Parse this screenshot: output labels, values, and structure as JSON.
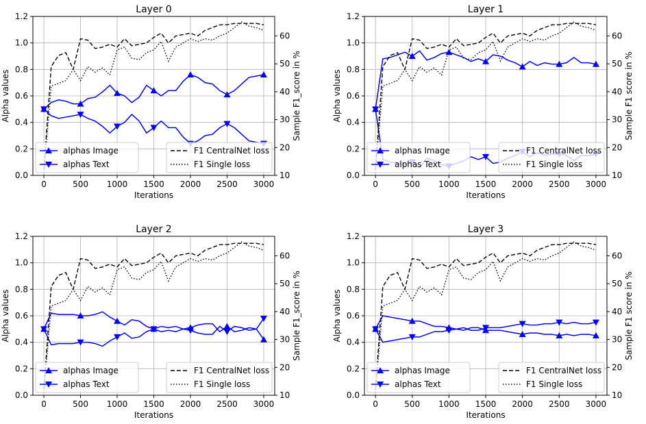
{
  "figure": {
    "colors": {
      "image": "#0000ff",
      "text": "#0000ff",
      "central": "#000000",
      "single": "#000000",
      "grid": "#b0b0b0"
    }
  },
  "chart_data": [
    {
      "type": "line",
      "title": "Layer 0",
      "xlabel": "Iterations",
      "ylabel": "Alpha values",
      "y2label": "Sample F1_score in %",
      "xlim": [
        -150,
        3150
      ],
      "ylim": [
        0,
        1.2
      ],
      "y2lim": [
        10,
        67
      ],
      "xticks": [
        0,
        500,
        1000,
        1500,
        2000,
        2500,
        3000
      ],
      "yticks": [
        0.0,
        0.2,
        0.4,
        0.6,
        0.8,
        1.0,
        1.2
      ],
      "y2ticks": [
        10,
        20,
        30,
        40,
        50,
        60
      ],
      "grid": true,
      "legend_left": [
        "alphas Image",
        "alphas Text"
      ],
      "legend_right": [
        "F1 CentralNet loss",
        "F1 Single loss"
      ],
      "x": [
        0,
        100,
        200,
        300,
        400,
        500,
        600,
        700,
        800,
        900,
        1000,
        1100,
        1200,
        1300,
        1400,
        1500,
        1600,
        1700,
        1800,
        1900,
        2000,
        2100,
        2200,
        2300,
        2400,
        2500,
        2600,
        2700,
        2800,
        2900,
        3000
      ],
      "series": [
        {
          "name": "alphas Image",
          "axis": "left",
          "marker": "triangle-up",
          "marker_every": 5,
          "values": [
            0.5,
            0.55,
            0.57,
            0.56,
            0.54,
            0.54,
            0.58,
            0.59,
            0.63,
            0.68,
            0.62,
            0.6,
            0.55,
            0.59,
            0.68,
            0.64,
            0.6,
            0.64,
            0.64,
            0.71,
            0.76,
            0.74,
            0.7,
            0.69,
            0.64,
            0.61,
            0.64,
            0.69,
            0.74,
            0.75,
            0.76
          ]
        },
        {
          "name": "alphas Text",
          "axis": "left",
          "marker": "triangle-down",
          "marker_every": 5,
          "values": [
            0.5,
            0.45,
            0.43,
            0.44,
            0.45,
            0.46,
            0.43,
            0.41,
            0.37,
            0.32,
            0.37,
            0.4,
            0.46,
            0.41,
            0.32,
            0.36,
            0.41,
            0.36,
            0.36,
            0.29,
            0.24,
            0.26,
            0.3,
            0.31,
            0.36,
            0.39,
            0.36,
            0.31,
            0.26,
            0.25,
            0.24
          ]
        },
        {
          "name": "F1 CentralNet loss",
          "axis": "right",
          "dash": "dashed",
          "values": [
            12,
            49,
            53,
            54,
            48,
            59,
            58.5,
            55.5,
            56,
            57,
            56,
            59,
            56.5,
            57,
            57.5,
            59.5,
            61,
            57.5,
            60,
            60.5,
            61,
            60,
            62,
            63,
            64,
            64,
            64.5,
            64.5,
            64.5,
            64.5,
            64
          ]
        },
        {
          "name": "F1 Single loss",
          "axis": "right",
          "dash": "dotted",
          "values": [
            11,
            42,
            43,
            44,
            48,
            44,
            49,
            47,
            48.5,
            46,
            55,
            56,
            52,
            51.5,
            54,
            55,
            58,
            51,
            56,
            57.5,
            59,
            58,
            59,
            58.5,
            60,
            61,
            63,
            65,
            63.5,
            63,
            62
          ]
        }
      ]
    },
    {
      "type": "line",
      "title": "Layer 1",
      "xlabel": "Iterations",
      "ylabel": "Alpha values",
      "y2label": "Sample F1  score in %",
      "xlim": [
        -150,
        3150
      ],
      "ylim": [
        0,
        1.2
      ],
      "y2lim": [
        10,
        67
      ],
      "xticks": [
        0,
        500,
        1000,
        1500,
        2000,
        2500,
        3000
      ],
      "yticks": [
        0.0,
        0.2,
        0.4,
        0.6,
        0.8,
        1.0,
        1.2
      ],
      "y2ticks": [
        10,
        20,
        30,
        40,
        50,
        60
      ],
      "grid": true,
      "legend_left": [
        "alphas Image",
        "alphas Text"
      ],
      "legend_right": [
        "F1 CentralNet loss",
        "F1 Single loss"
      ],
      "x": [
        0,
        100,
        200,
        300,
        400,
        500,
        600,
        700,
        800,
        900,
        1000,
        1100,
        1200,
        1300,
        1400,
        1500,
        1600,
        1700,
        1800,
        1900,
        2000,
        2100,
        2200,
        2300,
        2400,
        2500,
        2600,
        2700,
        2800,
        2900,
        3000
      ],
      "series": [
        {
          "name": "alphas Image",
          "axis": "left",
          "marker": "triangle-up",
          "marker_every": 5,
          "values": [
            0.5,
            0.88,
            0.89,
            0.91,
            0.93,
            0.9,
            0.94,
            0.87,
            0.89,
            0.92,
            0.93,
            0.91,
            0.89,
            0.86,
            0.88,
            0.86,
            0.91,
            0.9,
            0.87,
            0.85,
            0.82,
            0.86,
            0.83,
            0.85,
            0.84,
            0.84,
            0.85,
            0.89,
            0.85,
            0.85,
            0.84
          ]
        },
        {
          "name": "alphas Text",
          "axis": "left",
          "marker": "triangle-down",
          "marker_every": 5,
          "values": [
            0.5,
            0.12,
            0.1,
            0.09,
            0.08,
            0.1,
            0.06,
            0.13,
            0.11,
            0.08,
            0.07,
            0.09,
            0.11,
            0.14,
            0.12,
            0.14,
            0.09,
            0.1,
            0.13,
            0.15,
            0.18,
            0.14,
            0.17,
            0.15,
            0.16,
            0.16,
            0.15,
            0.11,
            0.15,
            0.15,
            0.16
          ]
        },
        {
          "name": "F1 CentralNet loss",
          "axis": "right",
          "dash": "dashed",
          "values": [
            12,
            49,
            53,
            54,
            48,
            59,
            58.5,
            55.5,
            56,
            57,
            56,
            59,
            56.5,
            57,
            57.5,
            59.5,
            61,
            57.5,
            60,
            60.5,
            61,
            60,
            62,
            63,
            64,
            64,
            64.5,
            64.5,
            64.5,
            64.5,
            64
          ]
        },
        {
          "name": "F1 Single loss",
          "axis": "right",
          "dash": "dotted",
          "values": [
            11,
            42,
            43,
            44,
            48,
            44,
            49,
            47,
            48.5,
            46,
            55,
            56,
            52,
            51.5,
            54,
            55,
            58,
            51,
            56,
            57.5,
            59,
            58,
            59,
            58.5,
            60,
            61,
            63,
            65,
            63.5,
            63,
            62
          ]
        }
      ]
    },
    {
      "type": "line",
      "title": "Layer 2",
      "xlabel": "Iterations",
      "ylabel": "Alpha values",
      "y2label": "Sample F1_score in %",
      "xlim": [
        -150,
        3150
      ],
      "ylim": [
        0,
        1.2
      ],
      "y2lim": [
        10,
        67
      ],
      "xticks": [
        0,
        500,
        1000,
        1500,
        2000,
        2500,
        3000
      ],
      "yticks": [
        0.0,
        0.2,
        0.4,
        0.6,
        0.8,
        1.0,
        1.2
      ],
      "y2ticks": [
        10,
        20,
        30,
        40,
        50,
        60
      ],
      "grid": true,
      "legend_left": [
        "alphas Image",
        "alphas Text"
      ],
      "legend_right": [
        "F1 CentralNet loss",
        "F1 Single loss"
      ],
      "x": [
        0,
        100,
        200,
        300,
        400,
        500,
        600,
        700,
        800,
        900,
        1000,
        1100,
        1200,
        1300,
        1400,
        1500,
        1600,
        1700,
        1800,
        1900,
        2000,
        2100,
        2200,
        2300,
        2400,
        2500,
        2600,
        2700,
        2800,
        2900,
        3000
      ],
      "series": [
        {
          "name": "alphas Image",
          "axis": "left",
          "marker": "triangle-up",
          "marker_every": 5,
          "values": [
            0.5,
            0.62,
            0.61,
            0.61,
            0.61,
            0.6,
            0.6,
            0.61,
            0.63,
            0.59,
            0.56,
            0.53,
            0.57,
            0.56,
            0.52,
            0.5,
            0.52,
            0.51,
            0.52,
            0.5,
            0.51,
            0.53,
            0.54,
            0.54,
            0.48,
            0.52,
            0.48,
            0.49,
            0.51,
            0.5,
            0.42
          ]
        },
        {
          "name": "alphas Text",
          "axis": "left",
          "marker": "triangle-down",
          "marker_every": 5,
          "values": [
            0.5,
            0.38,
            0.39,
            0.39,
            0.39,
            0.4,
            0.4,
            0.39,
            0.37,
            0.41,
            0.44,
            0.47,
            0.43,
            0.44,
            0.48,
            0.5,
            0.48,
            0.49,
            0.48,
            0.5,
            0.49,
            0.47,
            0.46,
            0.46,
            0.52,
            0.48,
            0.52,
            0.51,
            0.49,
            0.5,
            0.58
          ]
        },
        {
          "name": "F1 CentralNet loss",
          "axis": "right",
          "dash": "dashed",
          "values": [
            12,
            49,
            53,
            54,
            48,
            59,
            58.5,
            55.5,
            56,
            57,
            56,
            59,
            56.5,
            57,
            57.5,
            59.5,
            61,
            57.5,
            60,
            60.5,
            61,
            60,
            62,
            63,
            64,
            64,
            64.5,
            64.5,
            64.5,
            64.5,
            64
          ]
        },
        {
          "name": "F1 Single loss",
          "axis": "right",
          "dash": "dotted",
          "values": [
            11,
            42,
            43,
            44,
            48,
            44,
            49,
            47,
            48.5,
            46,
            55,
            56,
            52,
            51.5,
            54,
            55,
            58,
            51,
            56,
            57.5,
            59,
            58,
            59,
            58.5,
            60,
            61,
            63,
            65,
            63.5,
            63,
            62
          ]
        }
      ]
    },
    {
      "type": "line",
      "title": "Layer 3",
      "xlabel": "Iterations",
      "ylabel": "Alpha values",
      "y2label": "Sample F1  score in %",
      "xlim": [
        -150,
        3150
      ],
      "ylim": [
        0,
        1.2
      ],
      "y2lim": [
        10,
        67
      ],
      "xticks": [
        0,
        500,
        1000,
        1500,
        2000,
        2500,
        3000
      ],
      "yticks": [
        0.0,
        0.2,
        0.4,
        0.6,
        0.8,
        1.0,
        1.2
      ],
      "y2ticks": [
        10,
        20,
        30,
        40,
        50,
        60
      ],
      "grid": true,
      "legend_left": [
        "alphas Image",
        "alphas Text"
      ],
      "legend_right": [
        "F1 CentralNet loss",
        "F1 Single loss"
      ],
      "x": [
        0,
        100,
        200,
        300,
        400,
        500,
        600,
        700,
        800,
        900,
        1000,
        1100,
        1200,
        1300,
        1400,
        1500,
        1600,
        1700,
        1800,
        1900,
        2000,
        2100,
        2200,
        2300,
        2400,
        2500,
        2600,
        2700,
        2800,
        2900,
        3000
      ],
      "series": [
        {
          "name": "alphas Image",
          "axis": "left",
          "marker": "triangle-up",
          "marker_every": 5,
          "values": [
            0.5,
            0.6,
            0.59,
            0.58,
            0.57,
            0.56,
            0.56,
            0.54,
            0.52,
            0.52,
            0.51,
            0.5,
            0.49,
            0.51,
            0.51,
            0.49,
            0.49,
            0.49,
            0.48,
            0.47,
            0.46,
            0.47,
            0.47,
            0.46,
            0.46,
            0.45,
            0.46,
            0.45,
            0.46,
            0.46,
            0.45
          ]
        },
        {
          "name": "alphas Text",
          "axis": "left",
          "marker": "triangle-down",
          "marker_every": 5,
          "values": [
            0.5,
            0.4,
            0.41,
            0.42,
            0.43,
            0.44,
            0.44,
            0.46,
            0.48,
            0.48,
            0.49,
            0.5,
            0.51,
            0.49,
            0.49,
            0.51,
            0.51,
            0.51,
            0.52,
            0.53,
            0.54,
            0.53,
            0.53,
            0.54,
            0.54,
            0.55,
            0.54,
            0.55,
            0.54,
            0.54,
            0.55
          ]
        },
        {
          "name": "F1 CentralNet loss",
          "axis": "right",
          "dash": "dashed",
          "values": [
            12,
            49,
            53,
            54,
            48,
            59,
            58.5,
            55.5,
            56,
            57,
            56,
            59,
            56.5,
            57,
            57.5,
            59.5,
            61,
            57.5,
            60,
            60.5,
            61,
            60,
            62,
            63,
            64,
            64,
            64.5,
            64.5,
            64.5,
            64.5,
            64
          ]
        },
        {
          "name": "F1 Single loss",
          "axis": "right",
          "dash": "dotted",
          "values": [
            11,
            42,
            43,
            44,
            48,
            44,
            49,
            47,
            48.5,
            46,
            55,
            56,
            52,
            51.5,
            54,
            55,
            58,
            51,
            56,
            57.5,
            59,
            58,
            59,
            58.5,
            60,
            61,
            63,
            65,
            63.5,
            63,
            62
          ]
        }
      ]
    }
  ]
}
